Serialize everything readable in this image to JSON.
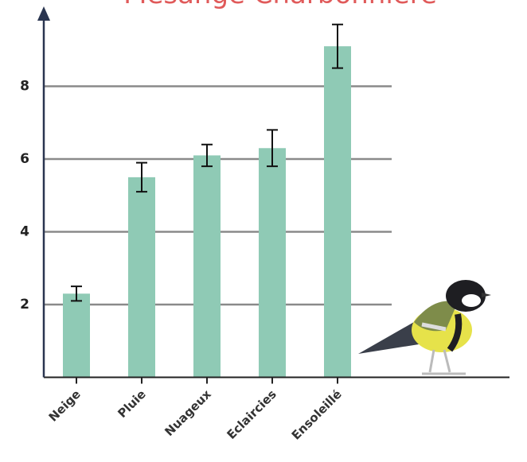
{
  "chart_data": {
    "type": "bar",
    "title": "Mésange Charbonnière",
    "categories": [
      "Neige",
      "Pluie",
      "Nuageux",
      "Eclaircies",
      "Ensoleillé"
    ],
    "values": [
      2.3,
      5.5,
      6.1,
      6.3,
      9.1
    ],
    "errors": [
      0.2,
      0.4,
      0.3,
      0.5,
      0.6
    ],
    "color": "#8fcab5",
    "ylim": [
      0,
      10
    ],
    "yticks": [
      2,
      4,
      6,
      8
    ],
    "grid": true
  }
}
